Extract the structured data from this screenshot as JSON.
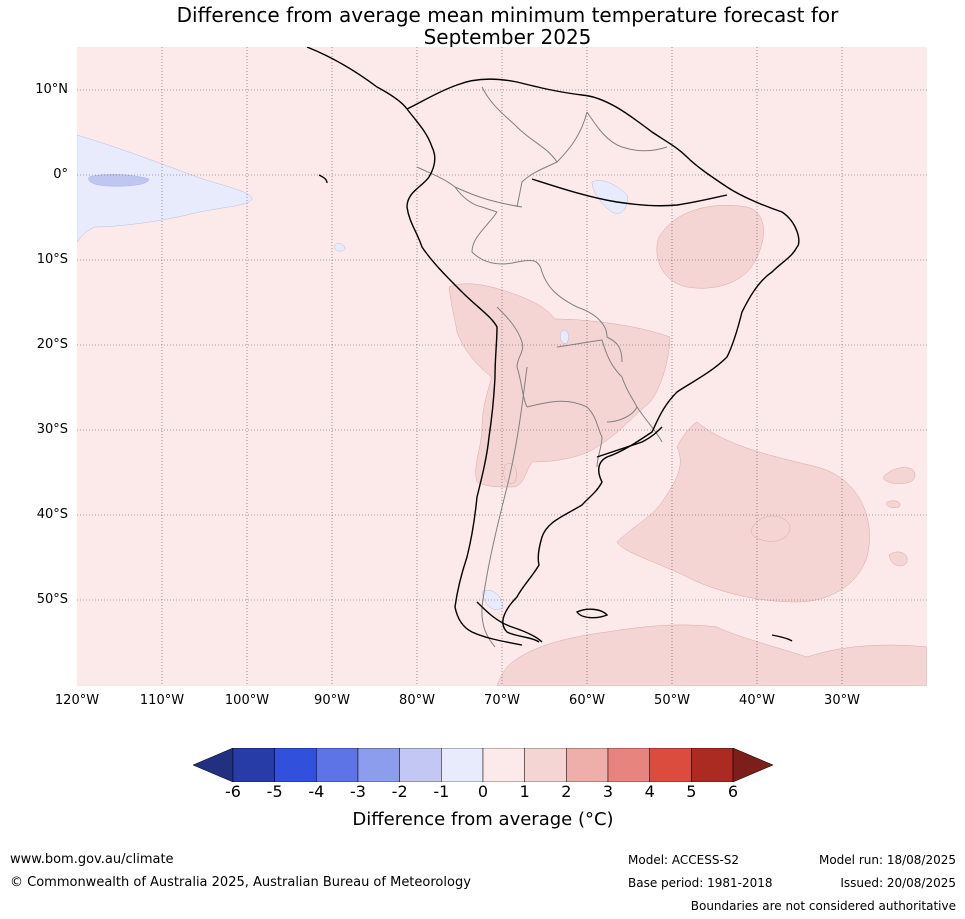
{
  "title": "Difference from average mean minimum temperature forecast for\nSeptember 2025",
  "map": {
    "lat_labels": [
      "10°N",
      "0°",
      "10°S",
      "20°S",
      "30°S",
      "40°S",
      "50°S"
    ],
    "lon_labels": [
      "120°W",
      "110°W",
      "100°W",
      "90°W",
      "80°W",
      "70°W",
      "60°W",
      "50°W",
      "40°W",
      "30°W"
    ],
    "background_color": "#fbeae9",
    "colors": {
      "ocean_base": "#fbeae9",
      "warm_1_2": "#f4d5d3",
      "cool_0_1": "#e8ebfb",
      "cool_1_2": "#c0c6f2",
      "coastline": "#000000",
      "borders": "#808080"
    }
  },
  "colorbar": {
    "ticks": [
      "-6",
      "-5",
      "-4",
      "-3",
      "-2",
      "-1",
      "0",
      "1",
      "2",
      "3",
      "4",
      "5",
      "6"
    ],
    "colors": [
      "#283ca8",
      "#3150dc",
      "#5d74e6",
      "#8d9ded",
      "#c2c8f3",
      "#e8ebfb",
      "#fbeae9",
      "#f4d5d3",
      "#eeaea9",
      "#e8847e",
      "#dc4c3e",
      "#ab2a21"
    ],
    "under_color": "#22307f",
    "over_color": "#7c1e19",
    "label": "Difference from average (°C)"
  },
  "footer": {
    "website": "www.bom.gov.au/climate",
    "copyright": "© Commonwealth of Australia 2025, Australian Bureau of Meteorology",
    "model": "Model: ACCESS-S2",
    "base_period": "Base period: 1981-2018",
    "model_run": "Model run: 18/08/2025",
    "issued": "Issued: 20/08/2025",
    "disclaimer": "Boundaries are not considered authoritative"
  }
}
